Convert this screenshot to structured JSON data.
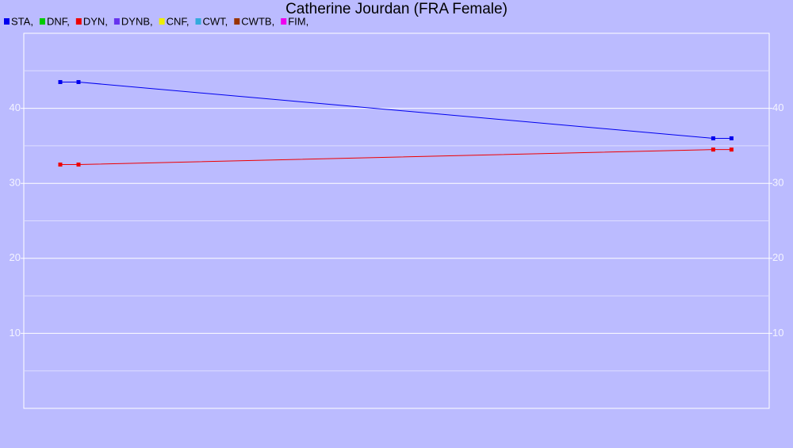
{
  "chart_data": {
    "type": "line",
    "title": "Catherine Jourdan (FRA Female)",
    "x": [
      2,
      3,
      37.8,
      38.8
    ],
    "xlim": [
      0,
      40.87
    ],
    "series": [
      {
        "name": "STA,",
        "color": "#0000ee",
        "values": [
          43.5,
          43.5,
          36,
          36
        ]
      },
      {
        "name": "DNF,",
        "color": "#00cc00",
        "values": [
          null,
          null,
          null,
          null
        ]
      },
      {
        "name": "DYN,",
        "color": "#ee0000",
        "values": [
          32.5,
          32.5,
          34.5,
          34.5
        ]
      },
      {
        "name": "DYNB,",
        "color": "#6633ee",
        "values": [
          null,
          null,
          null,
          null
        ]
      },
      {
        "name": "CNF,",
        "color": "#eeee00",
        "values": [
          null,
          null,
          null,
          null
        ]
      },
      {
        "name": "CWT,",
        "color": "#33aadd",
        "values": [
          null,
          null,
          null,
          null
        ]
      },
      {
        "name": "CWTB,",
        "color": "#993300",
        "values": [
          null,
          null,
          null,
          null
        ]
      },
      {
        "name": "FIM,",
        "color": "#ee00ee",
        "values": [
          null,
          null,
          null,
          null
        ]
      }
    ],
    "ylim": [
      0,
      50
    ],
    "yticks": [
      10,
      20,
      30,
      40
    ],
    "minor_yticks": [
      5,
      15,
      25,
      35,
      45
    ],
    "grid": true
  }
}
